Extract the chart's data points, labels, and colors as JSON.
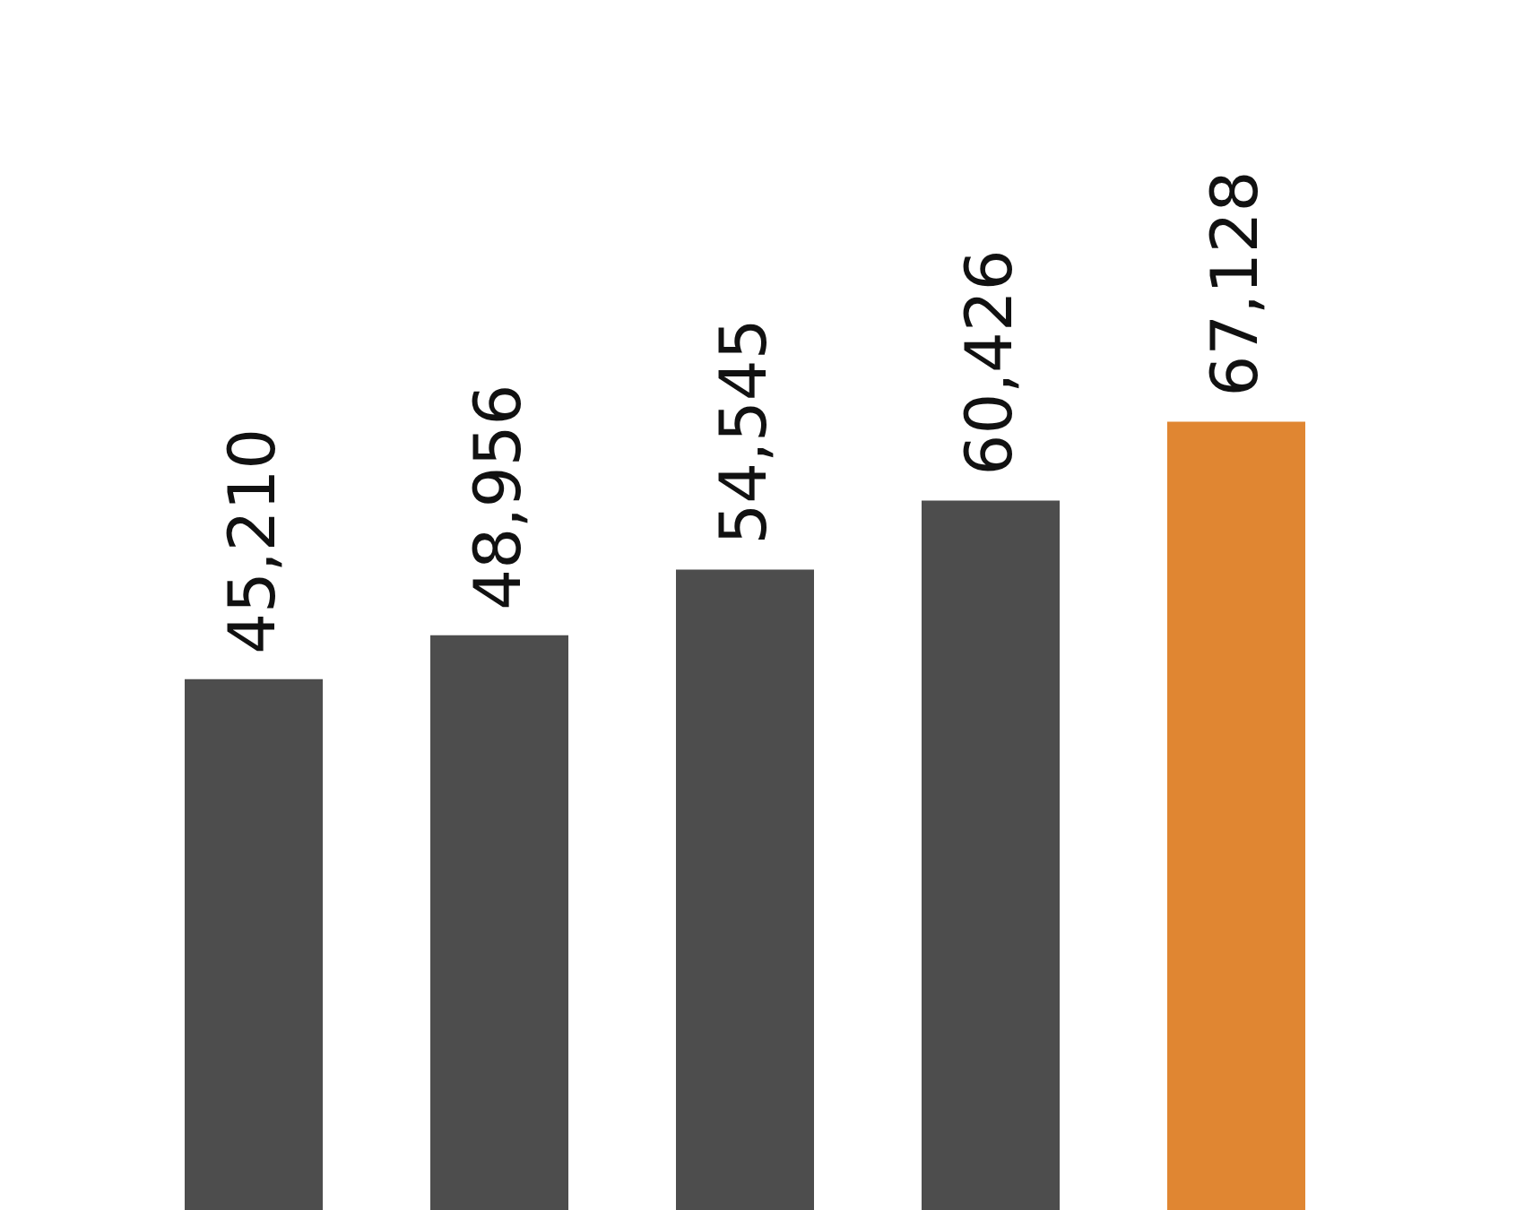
{
  "chart_data": {
    "type": "bar",
    "categories": [
      null,
      null,
      null,
      null,
      null
    ],
    "values": [
      45210,
      48956,
      54545,
      60426,
      67128
    ],
    "value_labels": [
      "45,210",
      "48,956",
      "54,545",
      "60,426",
      "67,128"
    ],
    "colors": [
      "#4d4d4d",
      "#4d4d4d",
      "#4d4d4d",
      "#4d4d4d",
      "#e08632"
    ],
    "tick_labels": false
  }
}
